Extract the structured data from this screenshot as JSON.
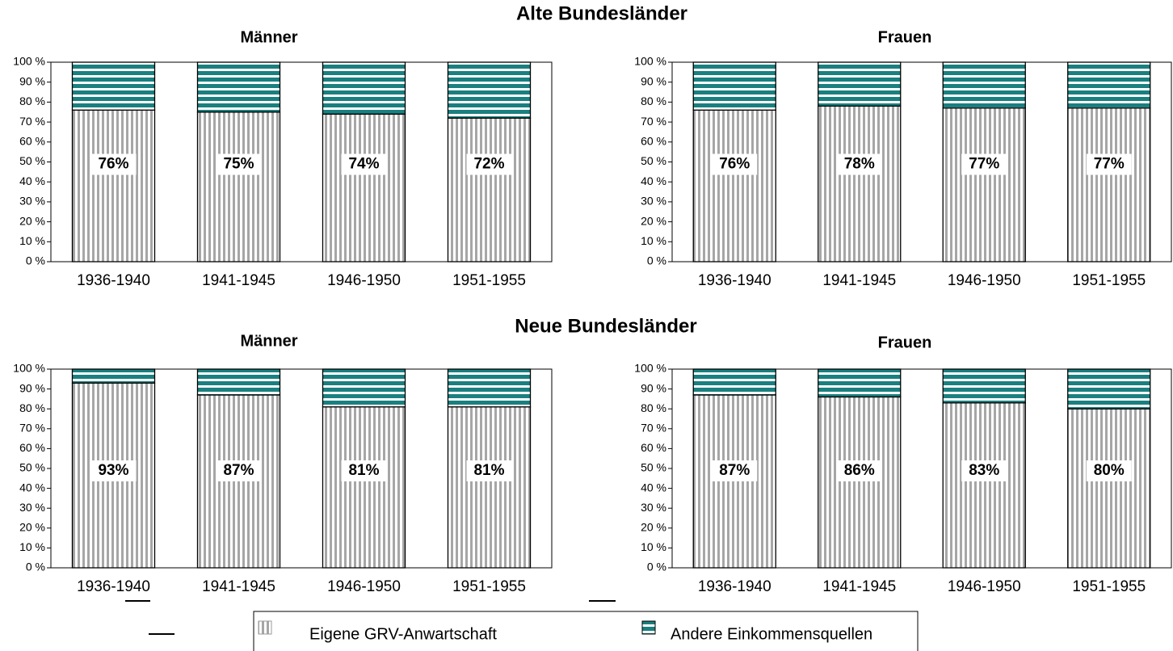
{
  "section_titles": [
    "Alte Bundesländer",
    "Neue Bundesländer"
  ],
  "chart_data": [
    {
      "type": "bar",
      "stacked": true,
      "title": "Männer",
      "categories": [
        "1936-1940",
        "1941-1945",
        "1946-1950",
        "1951-1955"
      ],
      "series": [
        {
          "name": "Eigene GRV-Anwartschaft",
          "color": "#a6a6a6",
          "values": [
            76,
            75,
            74,
            72
          ],
          "value_labels": [
            "76%",
            "75%",
            "74%",
            "72%"
          ]
        },
        {
          "name": "Andere Einkommensquellen",
          "color": "#1a7f7f",
          "values": [
            24,
            25,
            26,
            28
          ]
        }
      ],
      "ylim": [
        0,
        100
      ],
      "yticks": [
        {
          "value": 0,
          "label": "0 %"
        },
        {
          "value": 10,
          "label": "10 %"
        },
        {
          "value": 20,
          "label": "20 %"
        },
        {
          "value": 30,
          "label": "30 %"
        },
        {
          "value": 40,
          "label": "40 %"
        },
        {
          "value": 50,
          "label": "50 %"
        },
        {
          "value": 60,
          "label": "60 %"
        },
        {
          "value": 70,
          "label": "70 %"
        },
        {
          "value": 80,
          "label": "80 %"
        },
        {
          "value": 90,
          "label": "90 %"
        },
        {
          "value": 100,
          "label": "100 %"
        }
      ]
    },
    {
      "type": "bar",
      "stacked": true,
      "title": "Frauen",
      "categories": [
        "1936-1940",
        "1941-1945",
        "1946-1950",
        "1951-1955"
      ],
      "series": [
        {
          "name": "Eigene GRV-Anwartschaft",
          "color": "#a6a6a6",
          "values": [
            76,
            78,
            77,
            77
          ],
          "value_labels": [
            "76%",
            "78%",
            "77%",
            "77%"
          ]
        },
        {
          "name": "Andere Einkommensquellen",
          "color": "#1a7f7f",
          "values": [
            24,
            22,
            23,
            23
          ]
        }
      ],
      "ylim": [
        0,
        100
      ],
      "yticks": [
        {
          "value": 0,
          "label": "0 %"
        },
        {
          "value": 10,
          "label": "10 %"
        },
        {
          "value": 20,
          "label": "20 %"
        },
        {
          "value": 30,
          "label": "30 %"
        },
        {
          "value": 40,
          "label": "40 %"
        },
        {
          "value": 50,
          "label": "50 %"
        },
        {
          "value": 60,
          "label": "60 %"
        },
        {
          "value": 70,
          "label": "70 %"
        },
        {
          "value": 80,
          "label": "80 %"
        },
        {
          "value": 90,
          "label": "90 %"
        },
        {
          "value": 100,
          "label": "100 %"
        }
      ]
    },
    {
      "type": "bar",
      "stacked": true,
      "title": "Männer",
      "categories": [
        "1936-1940",
        "1941-1945",
        "1946-1950",
        "1951-1955"
      ],
      "series": [
        {
          "name": "Eigene GRV-Anwartschaft",
          "color": "#a6a6a6",
          "values": [
            93,
            87,
            81,
            81
          ],
          "value_labels": [
            "93%",
            "87%",
            "81%",
            "81%"
          ]
        },
        {
          "name": "Andere Einkommensquellen",
          "color": "#1a7f7f",
          "values": [
            7,
            13,
            19,
            19
          ]
        }
      ],
      "ylim": [
        0,
        100
      ],
      "yticks": [
        {
          "value": 0,
          "label": "0 %"
        },
        {
          "value": 10,
          "label": "10 %"
        },
        {
          "value": 20,
          "label": "20 %"
        },
        {
          "value": 30,
          "label": "30 %"
        },
        {
          "value": 40,
          "label": "40 %"
        },
        {
          "value": 50,
          "label": "50 %"
        },
        {
          "value": 60,
          "label": "60 %"
        },
        {
          "value": 70,
          "label": "70 %"
        },
        {
          "value": 80,
          "label": "80 %"
        },
        {
          "value": 90,
          "label": "90 %"
        },
        {
          "value": 100,
          "label": "100 %"
        }
      ]
    },
    {
      "type": "bar",
      "stacked": true,
      "title": "Frauen",
      "categories": [
        "1936-1940",
        "1941-1945",
        "1946-1950",
        "1951-1955"
      ],
      "series": [
        {
          "name": "Eigene GRV-Anwartschaft",
          "color": "#a6a6a6",
          "values": [
            87,
            86,
            83,
            80
          ],
          "value_labels": [
            "87%",
            "86%",
            "83%",
            "80%"
          ]
        },
        {
          "name": "Andere Einkommensquellen",
          "color": "#1a7f7f",
          "values": [
            13,
            14,
            17,
            20
          ]
        }
      ],
      "ylim": [
        0,
        100
      ],
      "yticks": [
        {
          "value": 0,
          "label": "0 %"
        },
        {
          "value": 10,
          "label": "10 %"
        },
        {
          "value": 20,
          "label": "20 %"
        },
        {
          "value": 30,
          "label": "30 %"
        },
        {
          "value": 40,
          "label": "40 %"
        },
        {
          "value": 50,
          "label": "50 %"
        },
        {
          "value": 60,
          "label": "60 %"
        },
        {
          "value": 70,
          "label": "70 %"
        },
        {
          "value": 80,
          "label": "80 %"
        },
        {
          "value": 90,
          "label": "90 %"
        },
        {
          "value": 100,
          "label": "100 %"
        }
      ]
    }
  ]
}
